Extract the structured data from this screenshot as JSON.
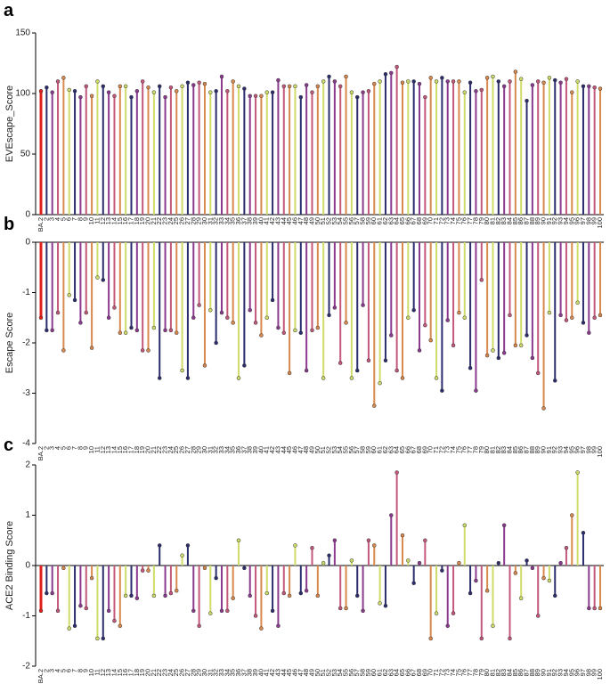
{
  "chart_data": [
    {
      "type": "lollipop",
      "panel": "a",
      "y_label": "EVEscape_Score",
      "categories": [
        "BA.2",
        "2",
        "3",
        "4",
        "5",
        "6",
        "7",
        "8",
        "9",
        "10",
        "11",
        "12",
        "13",
        "14",
        "15",
        "16",
        "17",
        "18",
        "19",
        "20",
        "21",
        "22",
        "23",
        "24",
        "25",
        "26",
        "27",
        "28",
        "29",
        "30",
        "31",
        "32",
        "33",
        "34",
        "35",
        "36",
        "37",
        "38",
        "39",
        "40",
        "41",
        "42",
        "43",
        "44",
        "45",
        "46",
        "47",
        "48",
        "49",
        "50",
        "51",
        "52",
        "53",
        "54",
        "55",
        "56",
        "57",
        "58",
        "59",
        "60",
        "61",
        "62",
        "63",
        "64",
        "65",
        "66",
        "67",
        "68",
        "69",
        "70",
        "71",
        "72",
        "73",
        "74",
        "75",
        "76",
        "77",
        "78",
        "79",
        "80",
        "81",
        "82",
        "83",
        "84",
        "85",
        "86",
        "87",
        "88",
        "89",
        "90",
        "91",
        "92",
        "93",
        "94",
        "95",
        "96",
        "97",
        "98",
        "99",
        "100"
      ],
      "values": [
        102,
        105,
        101,
        110,
        113,
        103,
        102,
        97,
        106,
        98,
        110,
        106,
        101,
        98,
        106,
        106,
        97,
        102,
        110,
        105,
        101,
        106,
        97,
        105,
        102,
        106,
        109,
        107,
        109,
        108,
        101,
        102,
        114,
        102,
        110,
        106,
        104,
        98,
        98,
        98,
        101,
        101,
        111,
        106,
        106,
        106,
        97,
        107,
        101,
        106,
        110,
        114,
        110,
        106,
        114,
        101,
        97,
        101,
        102,
        108,
        110,
        116,
        117,
        122,
        109,
        110,
        110,
        108,
        97,
        113,
        110,
        113,
        110,
        110,
        110,
        101,
        109,
        102,
        103,
        113,
        114,
        110,
        106,
        110,
        118,
        112,
        94,
        107,
        110,
        109,
        113,
        111,
        109,
        112,
        101,
        110,
        106,
        106,
        105,
        104
      ],
      "colors": [
        "#e0201b",
        "#2b2d6e",
        "#8b3a8f",
        "#c4587a",
        "#d9894e",
        "#cfdc6a",
        "#2b2d6e",
        "#8b3a8f",
        "#c4587a",
        "#d9894e",
        "#cfdc6a",
        "#2b2d6e",
        "#8b3a8f",
        "#c4587a",
        "#d9894e",
        "#cfdc6a",
        "#2b2d6e",
        "#8b3a8f",
        "#c4587a",
        "#d9894e",
        "#cfdc6a",
        "#2b2d6e",
        "#8b3a8f",
        "#c4587a",
        "#d9894e",
        "#cfdc6a",
        "#2b2d6e",
        "#8b3a8f",
        "#c4587a",
        "#d9894e",
        "#cfdc6a",
        "#2b2d6e",
        "#8b3a8f",
        "#c4587a",
        "#d9894e",
        "#cfdc6a",
        "#2b2d6e",
        "#8b3a8f",
        "#c4587a",
        "#d9894e",
        "#cfdc6a",
        "#2b2d6e",
        "#8b3a8f",
        "#c4587a",
        "#d9894e",
        "#cfdc6a",
        "#2b2d6e",
        "#8b3a8f",
        "#c4587a",
        "#d9894e",
        "#cfdc6a",
        "#2b2d6e",
        "#8b3a8f",
        "#c4587a",
        "#d9894e",
        "#cfdc6a",
        "#2b2d6e",
        "#8b3a8f",
        "#c4587a",
        "#d9894e",
        "#cfdc6a",
        "#2b2d6e",
        "#8b3a8f",
        "#c4587a",
        "#d9894e",
        "#cfdc6a",
        "#2b2d6e",
        "#8b3a8f",
        "#c4587a",
        "#d9894e",
        "#cfdc6a",
        "#2b2d6e",
        "#8b3a8f",
        "#c4587a",
        "#d9894e",
        "#cfdc6a",
        "#2b2d6e",
        "#8b3a8f",
        "#c4587a",
        "#d9894e",
        "#cfdc6a",
        "#2b2d6e",
        "#8b3a8f",
        "#c4587a",
        "#d9894e",
        "#cfdc6a",
        "#2b2d6e",
        "#8b3a8f",
        "#c4587a",
        "#d9894e",
        "#cfdc6a",
        "#2b2d6e",
        "#8b3a8f",
        "#c4587a",
        "#d9894e",
        "#cfdc6a",
        "#2b2d6e",
        "#8b3a8f",
        "#c4587a",
        "#d9894e"
      ],
      "ylim": [
        0,
        150
      ],
      "yticks": [
        0,
        50,
        100,
        150
      ]
    },
    {
      "type": "lollipop",
      "panel": "b",
      "y_label": "Escape Score",
      "categories": [
        "BA.2",
        "2",
        "3",
        "4",
        "5",
        "6",
        "7",
        "8",
        "9",
        "10",
        "11",
        "12",
        "13",
        "14",
        "15",
        "16",
        "17",
        "18",
        "19",
        "20",
        "21",
        "22",
        "23",
        "24",
        "25",
        "26",
        "27",
        "28",
        "29",
        "30",
        "31",
        "32",
        "33",
        "34",
        "35",
        "36",
        "37",
        "38",
        "39",
        "40",
        "41",
        "42",
        "43",
        "44",
        "45",
        "46",
        "47",
        "48",
        "49",
        "50",
        "51",
        "52",
        "53",
        "54",
        "55",
        "56",
        "57",
        "58",
        "59",
        "60",
        "61",
        "62",
        "63",
        "64",
        "65",
        "66",
        "67",
        "68",
        "69",
        "70",
        "71",
        "72",
        "73",
        "74",
        "75",
        "76",
        "77",
        "78",
        "79",
        "80",
        "81",
        "82",
        "83",
        "84",
        "85",
        "86",
        "87",
        "88",
        "89",
        "90",
        "91",
        "92",
        "93",
        "94",
        "95",
        "96",
        "97",
        "98",
        "99",
        "100"
      ],
      "values": [
        -1.5,
        -1.75,
        -1.75,
        -1.4,
        -2.15,
        -1.05,
        -1.15,
        -1.6,
        -1.4,
        -2.1,
        -0.7,
        -0.75,
        -1.5,
        -1.3,
        -1.8,
        -1.8,
        -1.7,
        -1.75,
        -2.15,
        -2.15,
        -1.7,
        -2.7,
        -1.75,
        -1.75,
        -1.8,
        -2.55,
        -2.7,
        -1.5,
        -1.25,
        -2.45,
        -1.35,
        -2.0,
        -1.4,
        -1.5,
        -1.6,
        -2.7,
        -2.45,
        -1.35,
        -1.6,
        -1.85,
        -1.5,
        -1.15,
        -1.7,
        -1.8,
        -2.6,
        -1.75,
        -1.8,
        -2.55,
        -1.75,
        -1.7,
        -2.7,
        -1.45,
        -1.3,
        -2.4,
        -1.6,
        -2.7,
        -2.55,
        -1.25,
        -2.35,
        -3.25,
        -2.8,
        -2.35,
        -1.85,
        -2.55,
        -2.7,
        -1.5,
        -1.35,
        -2.15,
        -1.65,
        -1.95,
        -2.7,
        -2.95,
        -1.55,
        -2.05,
        -1.4,
        -1.5,
        -2.5,
        -2.95,
        -0.75,
        -2.25,
        -2.15,
        -2.3,
        -2.2,
        -1.45,
        -2.05,
        -2.05,
        -1.85,
        -2.3,
        -2.6,
        -3.3,
        -1.4,
        -2.75,
        -1.45,
        -1.55,
        -1.5,
        -1.2,
        -1.6,
        -1.8,
        -1.5,
        -1.45
      ],
      "colors": [
        "#e0201b",
        "#2b2d6e",
        "#8b3a8f",
        "#c4587a",
        "#d9894e",
        "#cfdc6a",
        "#2b2d6e",
        "#8b3a8f",
        "#c4587a",
        "#d9894e",
        "#cfdc6a",
        "#2b2d6e",
        "#8b3a8f",
        "#c4587a",
        "#d9894e",
        "#cfdc6a",
        "#2b2d6e",
        "#8b3a8f",
        "#c4587a",
        "#d9894e",
        "#cfdc6a",
        "#2b2d6e",
        "#8b3a8f",
        "#c4587a",
        "#d9894e",
        "#cfdc6a",
        "#2b2d6e",
        "#8b3a8f",
        "#c4587a",
        "#d9894e",
        "#cfdc6a",
        "#2b2d6e",
        "#8b3a8f",
        "#c4587a",
        "#d9894e",
        "#cfdc6a",
        "#2b2d6e",
        "#8b3a8f",
        "#c4587a",
        "#d9894e",
        "#cfdc6a",
        "#2b2d6e",
        "#8b3a8f",
        "#c4587a",
        "#d9894e",
        "#cfdc6a",
        "#2b2d6e",
        "#8b3a8f",
        "#c4587a",
        "#d9894e",
        "#cfdc6a",
        "#2b2d6e",
        "#8b3a8f",
        "#c4587a",
        "#d9894e",
        "#cfdc6a",
        "#2b2d6e",
        "#8b3a8f",
        "#c4587a",
        "#d9894e",
        "#cfdc6a",
        "#2b2d6e",
        "#8b3a8f",
        "#c4587a",
        "#d9894e",
        "#cfdc6a",
        "#2b2d6e",
        "#8b3a8f",
        "#c4587a",
        "#d9894e",
        "#cfdc6a",
        "#2b2d6e",
        "#8b3a8f",
        "#c4587a",
        "#d9894e",
        "#cfdc6a",
        "#2b2d6e",
        "#8b3a8f",
        "#c4587a",
        "#d9894e",
        "#cfdc6a",
        "#2b2d6e",
        "#8b3a8f",
        "#c4587a",
        "#d9894e",
        "#cfdc6a",
        "#2b2d6e",
        "#8b3a8f",
        "#c4587a",
        "#d9894e",
        "#cfdc6a",
        "#2b2d6e",
        "#8b3a8f",
        "#c4587a",
        "#d9894e",
        "#cfdc6a",
        "#2b2d6e",
        "#8b3a8f",
        "#c4587a",
        "#d9894e"
      ],
      "ylim": [
        -4,
        0
      ],
      "yticks": [
        -4,
        -3,
        -2,
        -1,
        0
      ]
    },
    {
      "type": "lollipop",
      "panel": "c",
      "y_label": "ACE2 Binding Score",
      "categories": [
        "BA.2",
        "2",
        "3",
        "4",
        "5",
        "6",
        "7",
        "8",
        "9",
        "10",
        "11",
        "12",
        "13",
        "14",
        "15",
        "16",
        "17",
        "18",
        "19",
        "20",
        "21",
        "22",
        "23",
        "24",
        "25",
        "26",
        "27",
        "28",
        "29",
        "30",
        "31",
        "32",
        "33",
        "34",
        "35",
        "36",
        "37",
        "38",
        "39",
        "40",
        "41",
        "42",
        "43",
        "44",
        "45",
        "46",
        "47",
        "48",
        "49",
        "50",
        "51",
        "52",
        "53",
        "54",
        "55",
        "56",
        "57",
        "58",
        "59",
        "60",
        "61",
        "62",
        "63",
        "64",
        "65",
        "66",
        "67",
        "68",
        "69",
        "70",
        "71",
        "72",
        "73",
        "74",
        "75",
        "76",
        "77",
        "78",
        "79",
        "80",
        "81",
        "82",
        "83",
        "84",
        "85",
        "86",
        "87",
        "88",
        "89",
        "90",
        "91",
        "92",
        "93",
        "94",
        "95",
        "96",
        "97",
        "98",
        "99",
        "100"
      ],
      "values": [
        -0.9,
        -0.55,
        -0.55,
        -0.9,
        -0.05,
        -1.25,
        -1.2,
        -0.8,
        -0.85,
        -0.25,
        -1.45,
        -1.45,
        -0.9,
        -1.1,
        -1.2,
        -0.6,
        -0.6,
        -0.65,
        -0.1,
        -0.1,
        -0.6,
        0.4,
        -0.6,
        -0.55,
        -0.5,
        0.2,
        0.4,
        -0.9,
        -1.2,
        -0.05,
        -0.95,
        -0.25,
        -0.9,
        -0.9,
        -0.65,
        0.5,
        -0.05,
        -0.6,
        -1.0,
        -1.25,
        -0.55,
        -0.9,
        -1.2,
        -0.55,
        -0.6,
        0.4,
        -0.55,
        -0.5,
        0.35,
        -0.6,
        0.05,
        0.2,
        0.5,
        -0.85,
        -0.85,
        0.1,
        -0.6,
        -0.9,
        0.5,
        0.4,
        -0.75,
        -0.8,
        1.0,
        1.85,
        0.6,
        0.1,
        -0.35,
        0.05,
        0.5,
        -1.45,
        -0.95,
        -0.1,
        -1.2,
        -0.95,
        0.05,
        0.8,
        -0.55,
        -0.3,
        -1.45,
        -0.5,
        -1.2,
        0.05,
        0.8,
        -1.45,
        -0.15,
        -0.65,
        0.1,
        -0.05,
        -1.0,
        -0.25,
        -0.3,
        -0.6,
        0.05,
        0.35,
        1.0,
        1.85,
        0.65,
        -0.85,
        -0.85,
        -0.85
      ],
      "colors": [
        "#e0201b",
        "#2b2d6e",
        "#8b3a8f",
        "#c4587a",
        "#d9894e",
        "#cfdc6a",
        "#2b2d6e",
        "#8b3a8f",
        "#c4587a",
        "#d9894e",
        "#cfdc6a",
        "#2b2d6e",
        "#8b3a8f",
        "#c4587a",
        "#d9894e",
        "#cfdc6a",
        "#2b2d6e",
        "#8b3a8f",
        "#c4587a",
        "#d9894e",
        "#cfdc6a",
        "#2b2d6e",
        "#8b3a8f",
        "#c4587a",
        "#d9894e",
        "#cfdc6a",
        "#2b2d6e",
        "#8b3a8f",
        "#c4587a",
        "#d9894e",
        "#cfdc6a",
        "#2b2d6e",
        "#8b3a8f",
        "#c4587a",
        "#d9894e",
        "#cfdc6a",
        "#2b2d6e",
        "#8b3a8f",
        "#c4587a",
        "#d9894e",
        "#cfdc6a",
        "#2b2d6e",
        "#8b3a8f",
        "#c4587a",
        "#d9894e",
        "#cfdc6a",
        "#2b2d6e",
        "#8b3a8f",
        "#c4587a",
        "#d9894e",
        "#cfdc6a",
        "#2b2d6e",
        "#8b3a8f",
        "#c4587a",
        "#d9894e",
        "#cfdc6a",
        "#2b2d6e",
        "#8b3a8f",
        "#c4587a",
        "#d9894e",
        "#cfdc6a",
        "#2b2d6e",
        "#8b3a8f",
        "#c4587a",
        "#d9894e",
        "#cfdc6a",
        "#2b2d6e",
        "#8b3a8f",
        "#c4587a",
        "#d9894e",
        "#cfdc6a",
        "#2b2d6e",
        "#8b3a8f",
        "#c4587a",
        "#d9894e",
        "#cfdc6a",
        "#2b2d6e",
        "#8b3a8f",
        "#c4587a",
        "#d9894e",
        "#cfdc6a",
        "#2b2d6e",
        "#8b3a8f",
        "#c4587a",
        "#d9894e",
        "#cfdc6a",
        "#2b2d6e",
        "#8b3a8f",
        "#c4587a",
        "#d9894e",
        "#cfdc6a",
        "#2b2d6e",
        "#8b3a8f",
        "#c4587a",
        "#d9894e",
        "#cfdc6a",
        "#2b2d6e",
        "#8b3a8f",
        "#c4587a",
        "#d9894e"
      ],
      "ylim": [
        -2,
        2
      ],
      "yticks": [
        -2,
        -1,
        0,
        1,
        2
      ]
    }
  ]
}
